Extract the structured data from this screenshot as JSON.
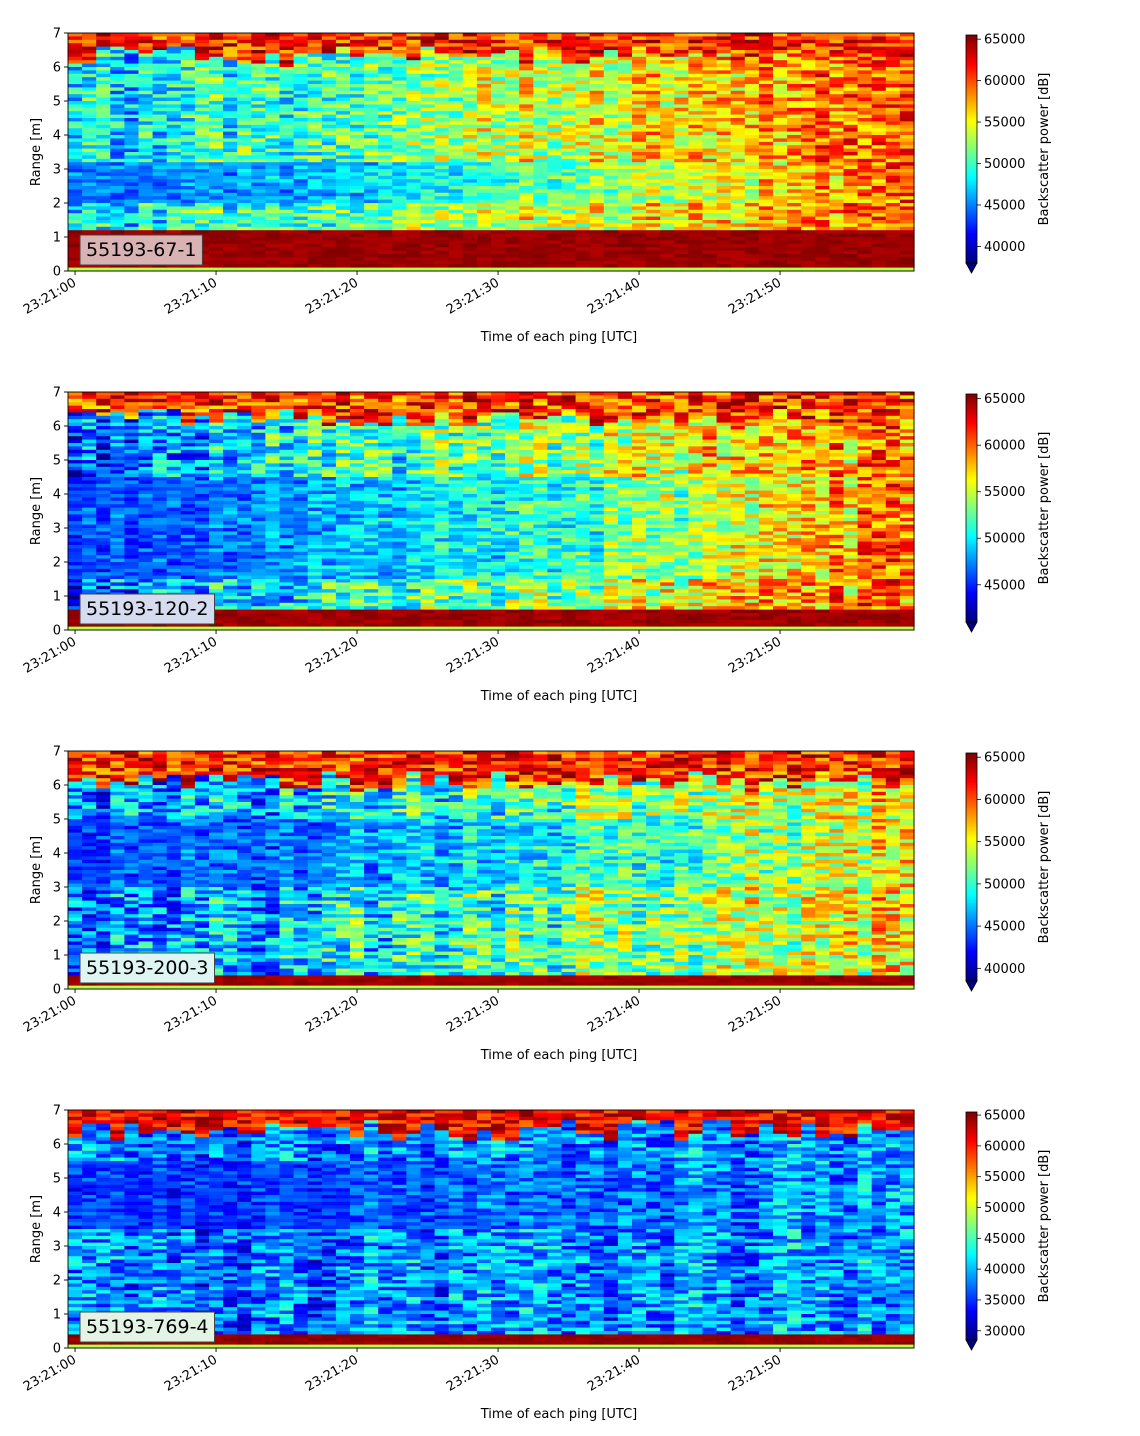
{
  "figure": {
    "panel_count": 4
  },
  "chart_data": [
    {
      "type": "heatmap",
      "label": "55193-67-1",
      "label_box_color": "#d9b3b3",
      "xlabel": "Time of each ping [UTC]",
      "ylabel": "Range [m]",
      "xticks": [
        "23:21:00",
        "23:21:10",
        "23:21:20",
        "23:21:30",
        "23:21:40",
        "23:21:50"
      ],
      "xlim_seconds": [
        -0.5,
        59.5
      ],
      "yticks": [
        "0",
        "1",
        "2",
        "3",
        "4",
        "5",
        "6",
        "7"
      ],
      "ylim": [
        0,
        7
      ],
      "colorbar": {
        "label": "Backscatter power [dB]",
        "ticks": [
          "40000",
          "45000",
          "50000",
          "55000",
          "60000",
          "65000"
        ],
        "range": [
          38000,
          65500
        ],
        "colormap": "jet",
        "extend": "min"
      },
      "profile": {
        "bottom_band_top_m": 1.2,
        "surface_band_start_m": 6.2,
        "mid_start": 47000,
        "mid_end": 60000,
        "low_zone_start": 2.0,
        "low_zone_end": 3.2,
        "low_zone_value": 43000,
        "noise": 4500
      }
    },
    {
      "type": "heatmap",
      "label": "55193-120-2",
      "label_box_color": "#d6dcef",
      "xlabel": "Time of each ping [UTC]",
      "ylabel": "Range [m]",
      "xticks": [
        "23:21:00",
        "23:21:10",
        "23:21:20",
        "23:21:30",
        "23:21:40",
        "23:21:50"
      ],
      "xlim_seconds": [
        -0.5,
        59.5
      ],
      "yticks": [
        "0",
        "1",
        "2",
        "3",
        "4",
        "5",
        "6",
        "7"
      ],
      "ylim": [
        0,
        7
      ],
      "colorbar": {
        "label": "Backscatter power [dB]",
        "ticks": [
          "45000",
          "50000",
          "55000",
          "60000",
          "65000"
        ],
        "range": [
          41000,
          65500
        ],
        "colormap": "jet",
        "extend": "min"
      },
      "profile": {
        "bottom_band_top_m": 0.55,
        "surface_band_start_m": 6.1,
        "mid_start": 46500,
        "mid_end": 59500,
        "low_zone_start": 1.5,
        "low_zone_end": 4.5,
        "low_zone_value": 45500,
        "noise": 4500
      }
    },
    {
      "type": "heatmap",
      "label": "55193-200-3",
      "label_box_color": "#dff5f3",
      "xlabel": "Time of each ping [UTC]",
      "ylabel": "Range [m]",
      "xticks": [
        "23:21:00",
        "23:21:10",
        "23:21:20",
        "23:21:30",
        "23:21:40",
        "23:21:50"
      ],
      "xlim_seconds": [
        -0.5,
        59.5
      ],
      "yticks": [
        "0",
        "1",
        "2",
        "3",
        "4",
        "5",
        "6",
        "7"
      ],
      "ylim": [
        0,
        7
      ],
      "colorbar": {
        "label": "Backscatter power [dB]",
        "ticks": [
          "40000",
          "45000",
          "50000",
          "55000",
          "60000",
          "65000"
        ],
        "range": [
          38500,
          65500
        ],
        "colormap": "jet",
        "extend": "min"
      },
      "profile": {
        "bottom_band_top_m": 0.4,
        "surface_band_start_m": 6.0,
        "mid_start": 45000,
        "mid_end": 55500,
        "low_zone_start": 3.0,
        "low_zone_end": 5.0,
        "low_zone_value": 43000,
        "noise": 5000
      }
    },
    {
      "type": "heatmap",
      "label": "55193-769-4",
      "label_box_color": "#e4f4e4",
      "xlabel": "Time of each ping [UTC]",
      "ylabel": "Range [m]",
      "xticks": [
        "23:21:00",
        "23:21:10",
        "23:21:20",
        "23:21:30",
        "23:21:40",
        "23:21:50"
      ],
      "xlim_seconds": [
        -0.5,
        59.5
      ],
      "yticks": [
        "0",
        "1",
        "2",
        "3",
        "4",
        "5",
        "6",
        "7"
      ],
      "ylim": [
        0,
        7
      ],
      "colorbar": {
        "label": "Backscatter power [dB]",
        "ticks": [
          "30000",
          "35000",
          "40000",
          "45000",
          "50000",
          "55000",
          "60000",
          "65000"
        ],
        "range": [
          28500,
          65500
        ],
        "colormap": "jet",
        "extend": "min"
      },
      "profile": {
        "bottom_band_top_m": 0.35,
        "surface_band_start_m": 6.3,
        "mid_start": 37000,
        "mid_end": 39000,
        "low_zone_start": 3.5,
        "low_zone_end": 5.5,
        "low_zone_value": 33500,
        "noise": 5500
      }
    }
  ]
}
